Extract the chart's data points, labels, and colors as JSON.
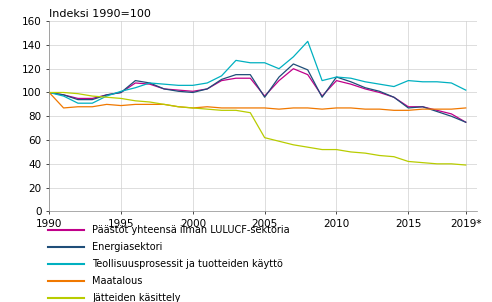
{
  "title": "Indeksi 1990=100",
  "years": [
    1990,
    1991,
    1992,
    1993,
    1994,
    1995,
    1996,
    1997,
    1998,
    1999,
    2000,
    2001,
    2002,
    2003,
    2004,
    2005,
    2006,
    2007,
    2008,
    2009,
    2010,
    2011,
    2012,
    2013,
    2014,
    2015,
    2016,
    2017,
    2018,
    2019
  ],
  "series": [
    {
      "label": "Päästöt yhteensä ilman LULUCF-sektoria",
      "color": "#c0008a",
      "data": [
        100,
        98,
        95,
        95,
        98,
        100,
        108,
        107,
        103,
        102,
        101,
        103,
        110,
        112,
        112,
        97,
        110,
        120,
        115,
        97,
        110,
        107,
        103,
        100,
        96,
        88,
        88,
        85,
        82,
        75
      ]
    },
    {
      "label": "Energiasektori",
      "color": "#1f4e79",
      "data": [
        100,
        98,
        94,
        94,
        98,
        100,
        110,
        108,
        103,
        101,
        100,
        103,
        111,
        115,
        115,
        96,
        113,
        124,
        119,
        96,
        113,
        109,
        104,
        101,
        96,
        87,
        88,
        84,
        80,
        75
      ]
    },
    {
      "label": "Teollisuusprosessit ja tuotteiden käyttö",
      "color": "#00b0c0",
      "data": [
        100,
        97,
        91,
        91,
        97,
        101,
        104,
        108,
        107,
        106,
        106,
        108,
        114,
        127,
        125,
        125,
        120,
        130,
        143,
        110,
        113,
        112,
        109,
        107,
        105,
        110,
        109,
        109,
        108,
        102
      ]
    },
    {
      "label": "Maatalous",
      "color": "#f07800",
      "data": [
        100,
        87,
        88,
        88,
        90,
        89,
        90,
        90,
        90,
        88,
        87,
        88,
        87,
        87,
        87,
        87,
        86,
        87,
        87,
        86,
        87,
        87,
        86,
        86,
        85,
        85,
        86,
        86,
        86,
        87
      ]
    },
    {
      "label": "Jätteiden käsittely",
      "color": "#b8cc00",
      "data": [
        100,
        100,
        99,
        97,
        96,
        95,
        93,
        92,
        90,
        88,
        87,
        86,
        85,
        85,
        83,
        62,
        59,
        56,
        54,
        52,
        52,
        50,
        49,
        47,
        46,
        42,
        41,
        40,
        40,
        39
      ]
    }
  ],
  "ylim": [
    0,
    160
  ],
  "yticks": [
    0,
    20,
    40,
    60,
    80,
    100,
    120,
    140,
    160
  ],
  "xticks": [
    1990,
    1995,
    2000,
    2005,
    2010,
    2015,
    2019
  ],
  "xticklabels": [
    "1990",
    "1995",
    "2000",
    "2005",
    "2010",
    "2015",
    "2019*"
  ],
  "background_color": "#ffffff",
  "grid_color": "#d0d0d0"
}
